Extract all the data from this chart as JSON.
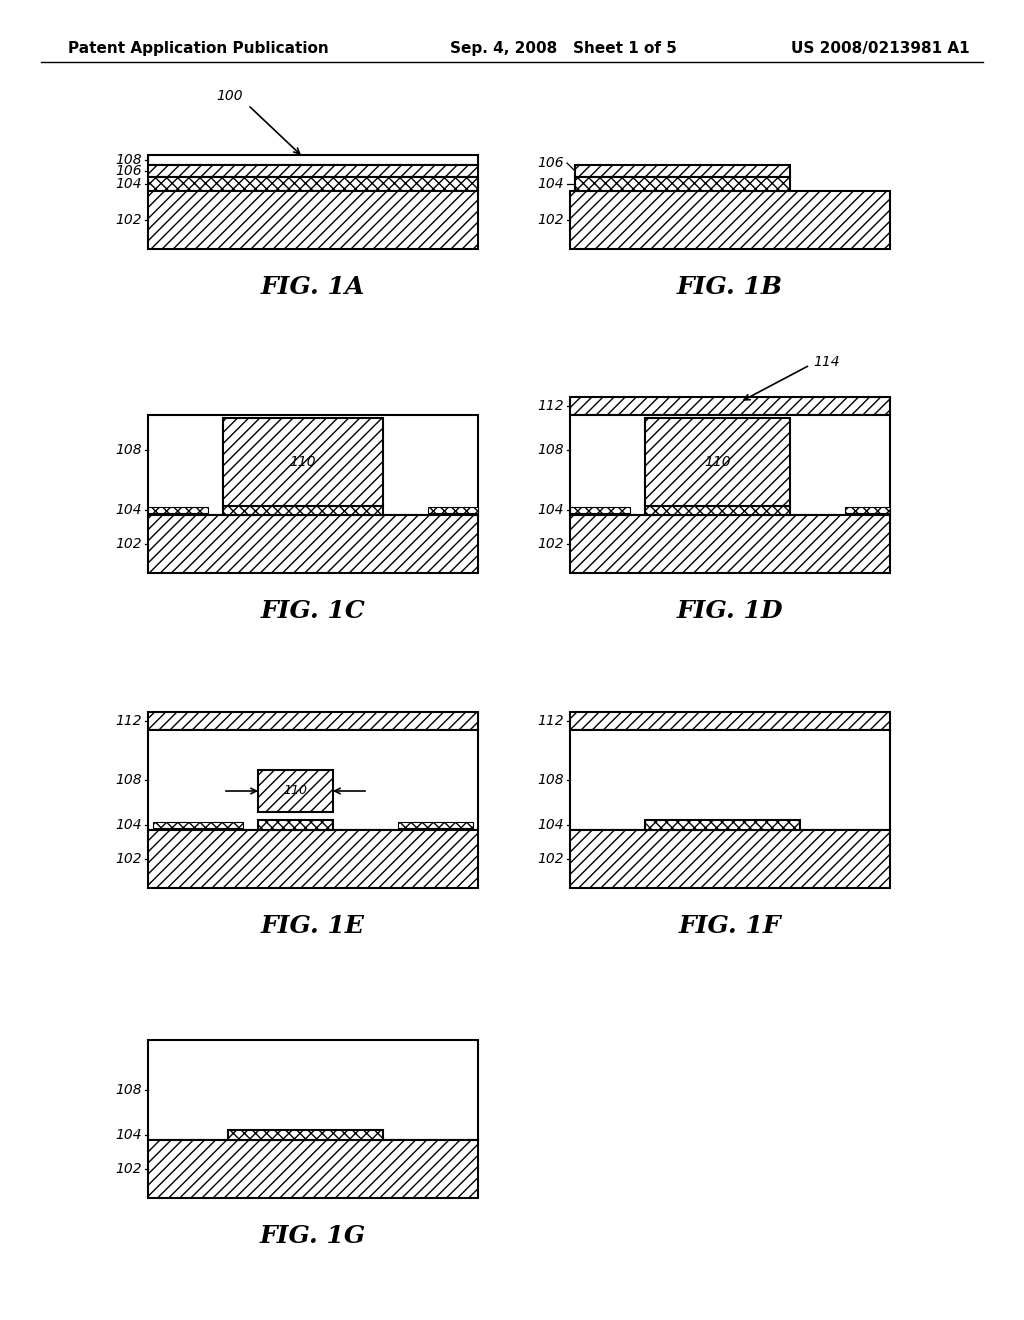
{
  "header": {
    "left": "Patent Application Publication",
    "center": "Sep. 4, 2008   Sheet 1 of 5",
    "right": "US 2008/0213981 A1"
  },
  "bg_color": "#ffffff",
  "line_color": "#000000"
}
